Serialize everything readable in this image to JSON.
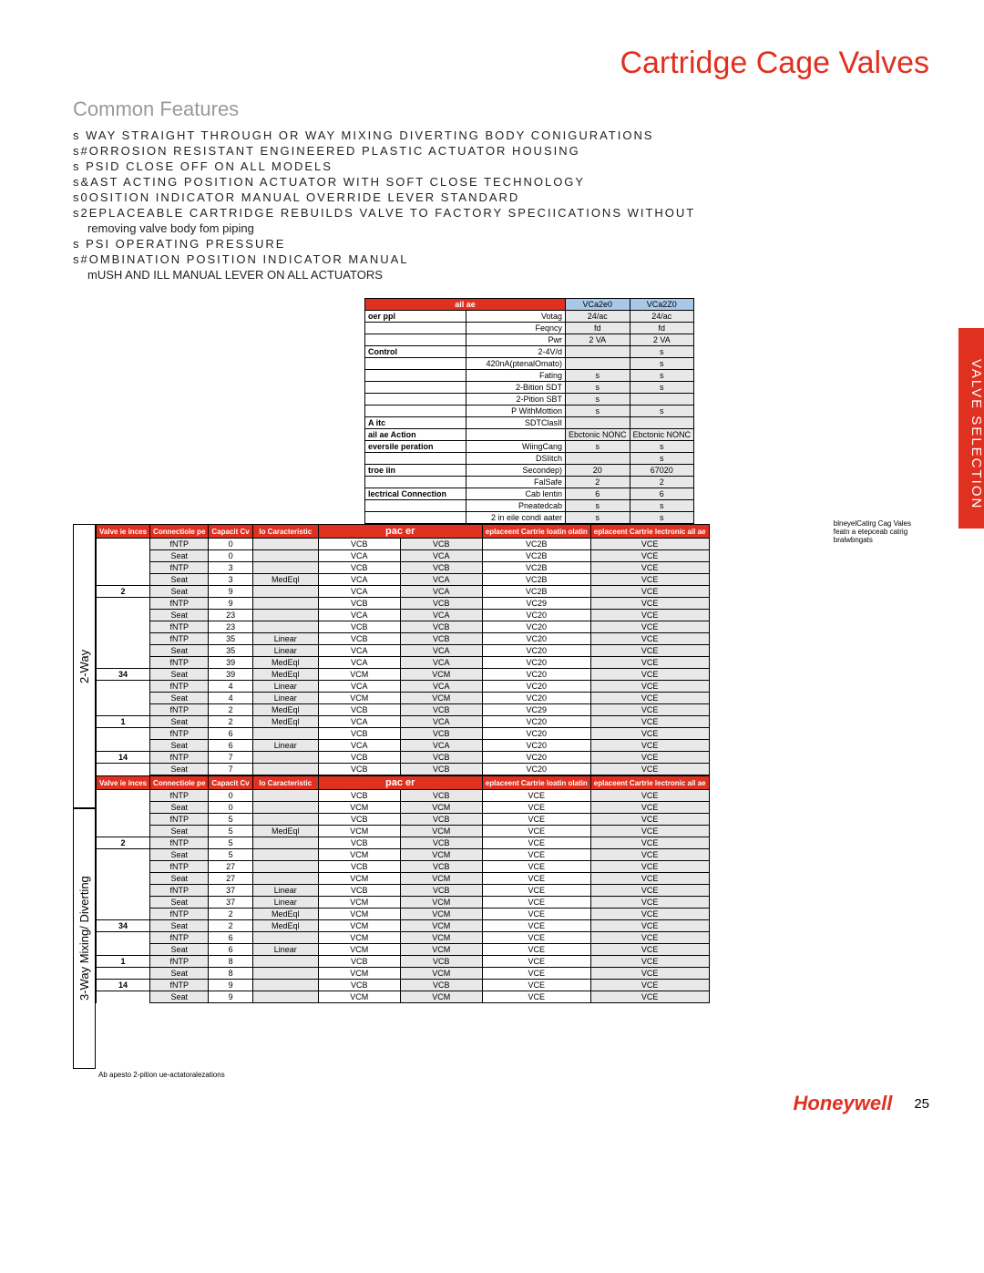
{
  "title": "Cartridge Cage Valves",
  "subtitle": "Common Features",
  "features": [
    "s   WAY STRAIGHT THROUGH OR   WAY MIXING DIVERTING BODY CONIGURATIONS",
    "s#ORROSION RESISTANT  ENGINEERED PLASTIC ACTUATOR HOUSING",
    "s   PSID CLOSE OFF ON ALL MODELS",
    "s&AST ACTING   POSITION ACTUATOR WITH SOFT CLOSE TECHNOLOGY",
    "s0OSITION INDICATOR MANUAL OVERRIDE LEVER STANDARD",
    "s2EPLACEABLE CARTRIDGE REBUILDS VALVE TO FACTORY SPECIICATIONS WITHOUT"
  ],
  "feature_indent": "removing valve body fom piping",
  "features2": [
    "s    PSI OPERATING PRESSURE",
    "s#OMBINATION POSITION INDICATOR MANUAL"
  ],
  "feature_indent2": "mUSH AND ILL MANUAL LEVER ON ALL ACTUATORS",
  "side_tab": "VALVE SELECTION",
  "colors": {
    "accent": "#e03020",
    "blue": "#a8c8e8",
    "grey": "#e8e8e8"
  },
  "top_table": {
    "hdr1": "ail ae",
    "hdr2a": "VCa2e0",
    "hdr2b": "VCa2Z0",
    "rows": [
      [
        "oer ppl",
        "Votag",
        "24/ac",
        "24/ac"
      ],
      [
        "",
        "Feqncy",
        "fd",
        "fd"
      ],
      [
        "",
        "Pwr",
        "2 VA",
        "2 VA"
      ],
      [
        "Control",
        "2-4V/d",
        "",
        "s"
      ],
      [
        "",
        "420nA(ptenalOmato)",
        "",
        "s"
      ],
      [
        "",
        "Fating",
        "s",
        "s"
      ],
      [
        "",
        "2-Bition SDT",
        "s",
        "s"
      ],
      [
        "",
        "2-Pition SBT",
        "s",
        ""
      ],
      [
        "",
        "P WithMottion",
        "s",
        "s"
      ],
      [
        "A itc",
        "SDTClasII",
        "",
        ""
      ],
      [
        "ail ae Action",
        "",
        "Ebctonic NONC",
        "Ebctonic NONC"
      ],
      [
        "eversile peration",
        "WiingCang",
        "s",
        "s"
      ],
      [
        "",
        "DSIitch",
        "",
        "s"
      ],
      [
        "troe iin",
        "Secondep)",
        "20",
        "67020"
      ],
      [
        "",
        "FalSafe",
        "2",
        "2"
      ],
      [
        "lectrical Connection",
        "Cab lentin",
        "6",
        "6"
      ],
      [
        "",
        "Pneatedcab",
        "s",
        "s"
      ],
      [
        "",
        "2 in eile condi aater",
        "s",
        "s"
      ]
    ]
  },
  "right_note": [
    "blneyelCatirg Cag Vales",
    "featn a etepceab catrig",
    "bralwbngats"
  ],
  "main1": {
    "vlabel": "2-Way",
    "hdr": [
      "Valve ie inces",
      "Connectiole pe",
      "Capacit Cv",
      "lo Caracteristic",
      "pac  er",
      "",
      "eplaceent Cartrie loatin  olatin",
      "eplaceent Cartrie lectronic ail ae"
    ],
    "rows": [
      [
        "",
        "fNTP",
        "0",
        "",
        "VCB",
        "VCB",
        "VC2B",
        "VCE"
      ],
      [
        "",
        "Seat",
        "0",
        "",
        "VCA",
        "VCA",
        "VC2B",
        "VCE"
      ],
      [
        "",
        "fNTP",
        "3",
        "",
        "VCB",
        "VCB",
        "VC2B",
        "VCE"
      ],
      [
        "",
        "Seat",
        "3",
        "MedEql",
        "VCA",
        "VCA",
        "VC2B",
        "VCE"
      ],
      [
        "2",
        "Seat",
        "9",
        "",
        "VCA",
        "VCA",
        "VC2B",
        "VCE"
      ],
      [
        "",
        "fNTP",
        "9",
        "",
        "VCB",
        "VCB",
        "VC29",
        "VCE"
      ],
      [
        "",
        "Seat",
        "23",
        "",
        "VCA",
        "VCA",
        "VC20",
        "VCE"
      ],
      [
        "",
        "fNTP",
        "23",
        "",
        "VCB",
        "VCB",
        "VC20",
        "VCE"
      ],
      [
        "",
        "fNTP",
        "35",
        "Linear",
        "VCB",
        "VCB",
        "VC20",
        "VCE"
      ],
      [
        "",
        "Seat",
        "35",
        "Linear",
        "VCA",
        "VCA",
        "VC20",
        "VCE"
      ],
      [
        "",
        "fNTP",
        "39",
        "MedEql",
        "VCA",
        "VCA",
        "VC20",
        "VCE"
      ],
      [
        "34",
        "Seat",
        "39",
        "MedEql",
        "VCM",
        "VCM",
        "VC20",
        "VCE"
      ],
      [
        "",
        "fNTP",
        "4",
        "Linear",
        "VCA",
        "VCA",
        "VC20",
        "VCE"
      ],
      [
        "",
        "Seat",
        "4",
        "Linear",
        "VCM",
        "VCM",
        "VC20",
        "VCE"
      ],
      [
        "",
        "fNTP",
        "2",
        "MedEql",
        "VCB",
        "VCB",
        "VC29",
        "VCE"
      ],
      [
        "1",
        "Seat",
        "2",
        "MedEql",
        "VCA",
        "VCA",
        "VC20",
        "VCE"
      ],
      [
        "",
        "fNTP",
        "6",
        "",
        "VCB",
        "VCB",
        "VC20",
        "VCE"
      ],
      [
        "",
        "Seat",
        "6",
        "Linear",
        "VCA",
        "VCA",
        "VC20",
        "VCE"
      ],
      [
        "14",
        "fNTP",
        "7",
        "",
        "VCB",
        "VCB",
        "VC20",
        "VCE"
      ],
      [
        "",
        "Seat",
        "7",
        "",
        "VCB",
        "VCB",
        "VC20",
        "VCE"
      ]
    ]
  },
  "main2": {
    "vlabel": "3-Way Mixing/ Diverting",
    "hdr": [
      "Valve ie inces",
      "Connectiole pe",
      "Capacit Cv",
      "lo Caracteristic",
      "pac  er",
      "",
      "eplaceent Cartrie loatin  olatin",
      "eplaceent Cartrie lectronic ail ae"
    ],
    "rows": [
      [
        "",
        "fNTP",
        "0",
        "",
        "VCB",
        "VCB",
        "VCE",
        "VCE"
      ],
      [
        "",
        "Seat",
        "0",
        "",
        "VCM",
        "VCM",
        "VCE",
        "VCE"
      ],
      [
        "",
        "fNTP",
        "5",
        "",
        "VCB",
        "VCB",
        "VCE",
        "VCE"
      ],
      [
        "",
        "Seat",
        "5",
        "MedEql",
        "VCM",
        "VCM",
        "VCE",
        "VCE"
      ],
      [
        "2",
        "fNTP",
        "5",
        "",
        "VCB",
        "VCB",
        "VCE",
        "VCE"
      ],
      [
        "",
        "Seat",
        "5",
        "",
        "VCM",
        "VCM",
        "VCE",
        "VCE"
      ],
      [
        "",
        "fNTP",
        "27",
        "",
        "VCB",
        "VCB",
        "VCE",
        "VCE"
      ],
      [
        "",
        "Seat",
        "27",
        "",
        "VCM",
        "VCM",
        "VCE",
        "VCE"
      ],
      [
        "",
        "fNTP",
        "37",
        "Linear",
        "VCB",
        "VCB",
        "VCE",
        "VCE"
      ],
      [
        "",
        "Seat",
        "37",
        "Linear",
        "VCM",
        "VCM",
        "VCE",
        "VCE"
      ],
      [
        "",
        "fNTP",
        "2",
        "MedEql",
        "VCM",
        "VCM",
        "VCE",
        "VCE"
      ],
      [
        "34",
        "Seat",
        "2",
        "MedEql",
        "VCM",
        "VCM",
        "VCE",
        "VCE"
      ],
      [
        "",
        "fNTP",
        "6",
        "",
        "VCM",
        "VCM",
        "VCE",
        "VCE"
      ],
      [
        "",
        "Seat",
        "6",
        "Linear",
        "VCM",
        "VCM",
        "VCE",
        "VCE"
      ],
      [
        "1",
        "fNTP",
        "8",
        "",
        "VCB",
        "VCB",
        "VCE",
        "VCE"
      ],
      [
        "",
        "Seat",
        "8",
        "",
        "VCM",
        "VCM",
        "VCE",
        "VCE"
      ],
      [
        "14",
        "fNTP",
        "9",
        "",
        "VCB",
        "VCB",
        "VCE",
        "VCE"
      ],
      [
        "",
        "Seat",
        "9",
        "",
        "VCM",
        "VCM",
        "VCE",
        "VCE"
      ]
    ]
  },
  "footnote": "Ab apesto 2-pition ue-actatoralezations",
  "brand": "Honeywell",
  "pagenum": "25"
}
